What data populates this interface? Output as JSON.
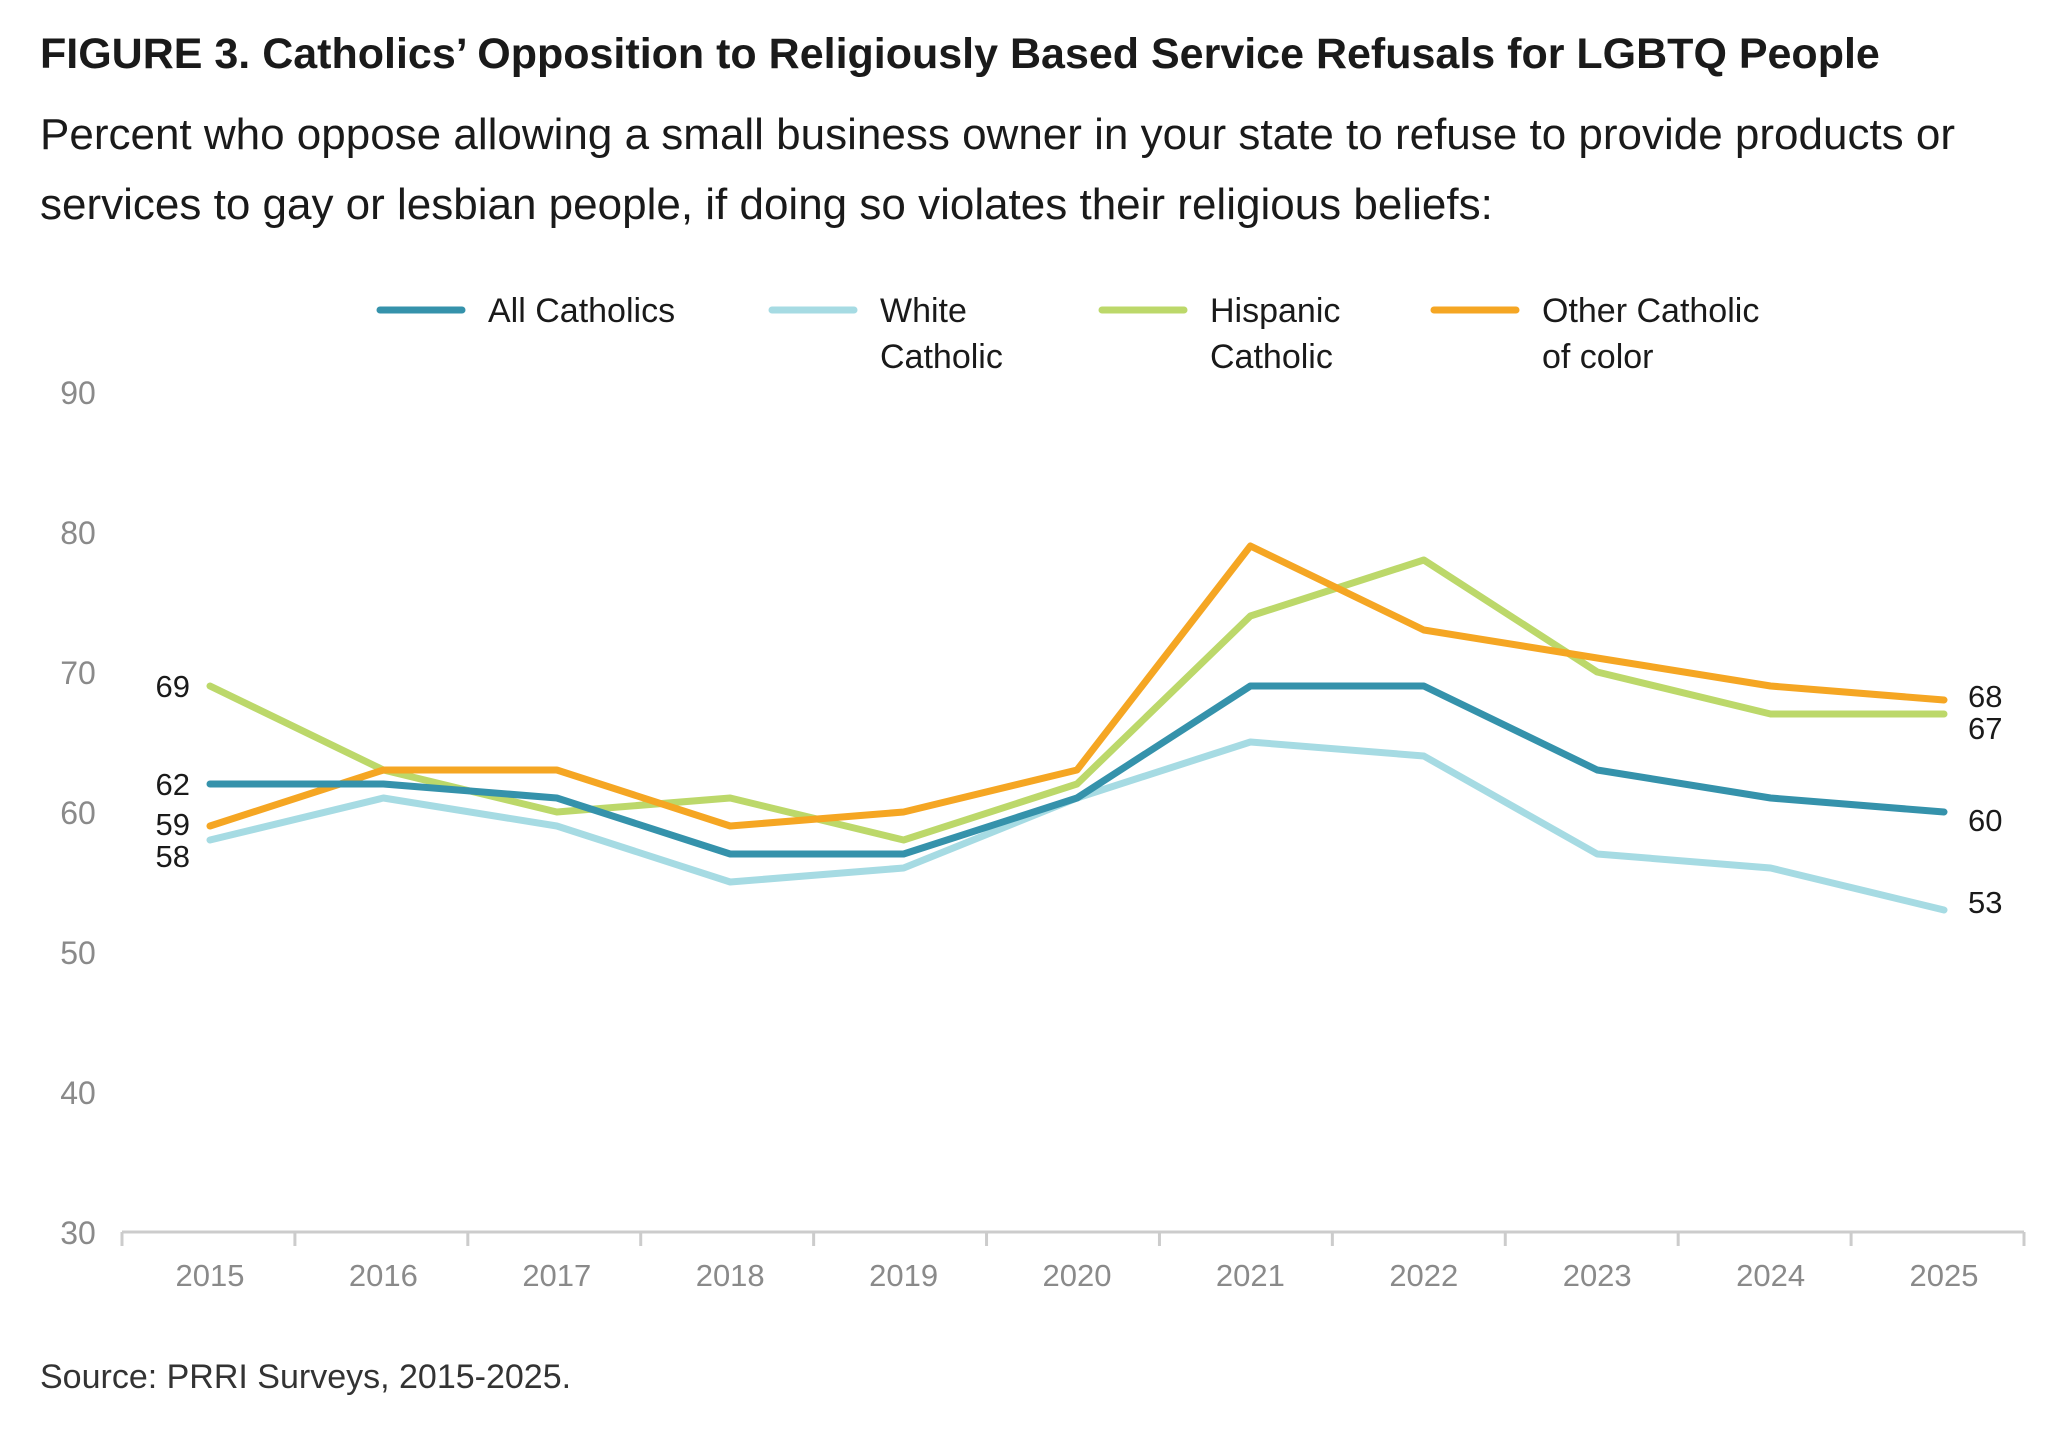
{
  "title": "FIGURE 3. Catholics’ Opposition to Religiously Based Service Refusals for LGBTQ People",
  "subtitle": "Percent who oppose allowing a small business owner in your state to refuse to provide products or services to gay or lesbian people, if doing so violates their religious beliefs:",
  "source": "Source: PRRI Surveys, 2015-2025.",
  "chart_data": {
    "type": "line",
    "x": [
      "2015",
      "2016",
      "2017",
      "2018",
      "2019",
      "2020",
      "2021",
      "2022",
      "2023",
      "2024",
      "2025"
    ],
    "ylim": [
      30,
      90
    ],
    "yticks": [
      "30",
      "40",
      "50",
      "60",
      "70",
      "80",
      "90"
    ],
    "grid": false,
    "legend_position": "top",
    "series": [
      {
        "name": "All Catholics",
        "legend_lines": [
          "All Catholics"
        ],
        "color": "#3592ab",
        "values": [
          62,
          62,
          61,
          57,
          57,
          61,
          69,
          69,
          63,
          61,
          60
        ]
      },
      {
        "name": "White Catholic",
        "legend_lines": [
          "White",
          "Catholic"
        ],
        "color": "#a6dbe3",
        "values": [
          58,
          61,
          59,
          55,
          56,
          61,
          65,
          64,
          57,
          56,
          53
        ]
      },
      {
        "name": "Hispanic Catholic",
        "legend_lines": [
          "Hispanic",
          "Catholic"
        ],
        "color": "#bcd86a",
        "values": [
          69,
          63,
          60,
          61,
          58,
          62,
          74,
          78,
          70,
          67,
          67
        ]
      },
      {
        "name": "Other Catholic of color",
        "legend_lines": [
          "Other Catholic",
          "of color"
        ],
        "color": "#f5a623",
        "values": [
          59,
          63,
          63,
          59,
          60,
          63,
          79,
          73,
          71,
          69,
          68
        ]
      }
    ],
    "start_labels": [
      {
        "series": 2,
        "text": "69"
      },
      {
        "series": 0,
        "text": "62"
      },
      {
        "series": 3,
        "text": "59"
      },
      {
        "series": 1,
        "text": "58"
      }
    ],
    "end_labels": [
      {
        "series": 3,
        "text": "68"
      },
      {
        "series": 2,
        "text": "67"
      },
      {
        "series": 0,
        "text": "60"
      },
      {
        "series": 1,
        "text": "53"
      }
    ]
  }
}
